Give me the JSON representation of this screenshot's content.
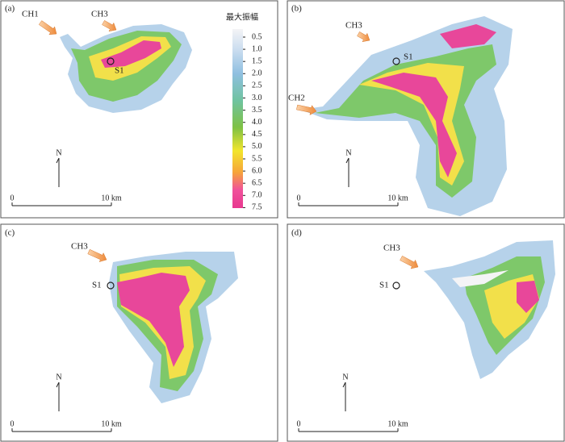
{
  "panels": [
    {
      "label": "(a)",
      "arrows": [
        "CH1",
        "CH3"
      ],
      "site": "S1",
      "north": "N",
      "scale": [
        "0",
        "10 km"
      ]
    },
    {
      "label": "(b)",
      "arrows": [
        "CH3",
        "CH2"
      ],
      "site": "S1",
      "north": "N",
      "scale": [
        "0",
        "10 km"
      ]
    },
    {
      "label": "(c)",
      "arrows": [
        "CH3"
      ],
      "site": "S1",
      "north": "N",
      "scale": [
        "0",
        "10 km"
      ]
    },
    {
      "label": "(d)",
      "arrows": [
        "CH3"
      ],
      "site": "S1",
      "north": "N",
      "scale": [
        "0",
        "10 km"
      ]
    }
  ],
  "legend": {
    "title": "最大振幅",
    "ticks": [
      "0.5",
      "1.0",
      "1.5",
      "2.0",
      "2.5",
      "3.0",
      "3.5",
      "4.0",
      "4.5",
      "5.0",
      "5.5",
      "6.0",
      "6.5",
      "7.0",
      "7.5"
    ]
  }
}
